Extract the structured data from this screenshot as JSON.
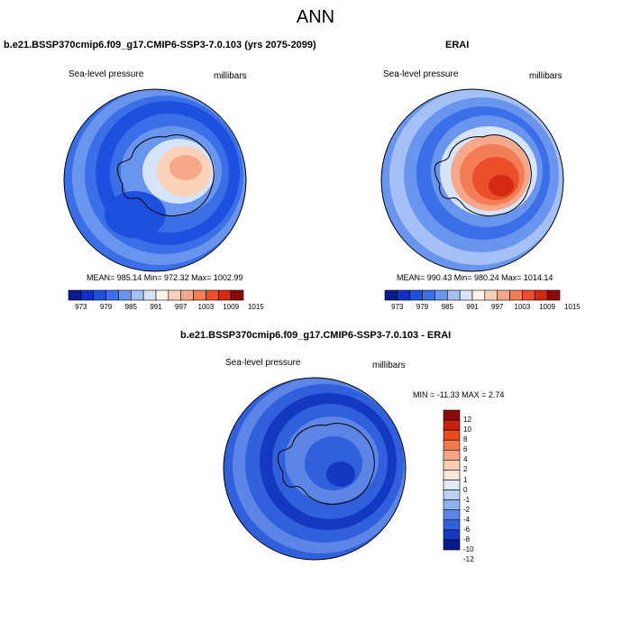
{
  "page": {
    "title": "ANN"
  },
  "panels": [
    {
      "id": "model",
      "title": "b.e21.BSSP370cmip6.f09_g17.CMIP6-SSP3-7.0.103 (yrs 2075-2099)",
      "left_label": "Sea-level pressure",
      "right_label": "millibars",
      "stats": "MEAN= 985.14  Min= 972.32  Max= 1002.99"
    },
    {
      "id": "obs",
      "title": "ERAI",
      "left_label": "Sea-level pressure",
      "right_label": "millibars",
      "stats": "MEAN= 990.43  Min= 980.24  Max= 1014.14"
    },
    {
      "id": "diff",
      "title": "b.e21.BSSP370cmip6.f09_g17.CMIP6-SSP3-7.0.103 - ERAI",
      "left_label": "Sea-level pressure",
      "right_label": "millibars",
      "stats": "MIN = -11.33 MAX =   2.74"
    }
  ],
  "abs_colorbar": {
    "colors": [
      "#0a1a8c",
      "#1230c8",
      "#1e50e0",
      "#3a6fe8",
      "#6a95ee",
      "#a4c0f4",
      "#d6e4fa",
      "#fff2e6",
      "#fbd2b8",
      "#f7a88a",
      "#f27d56",
      "#ea4f2a",
      "#d42a14",
      "#8a0a0a"
    ],
    "tick_labels": [
      "973",
      "979",
      "985",
      "991",
      "997",
      "1003",
      "1009",
      "1015"
    ]
  },
  "diff_colorbar": {
    "colors": [
      "#8a0a0a",
      "#c8200f",
      "#e84a1e",
      "#f07a4e",
      "#f5a584",
      "#f9cdb4",
      "#fde8da",
      "#e4ecfb",
      "#bcd0f5",
      "#8fb0ef",
      "#5c85e6",
      "#3060dc",
      "#1538c0",
      "#0a1a8c"
    ],
    "tick_labels": [
      "12",
      "10",
      "8",
      "6",
      "4",
      "2",
      "1",
      "0",
      "-1",
      "-2",
      "-4",
      "-6",
      "-8",
      "-10",
      "-12"
    ]
  }
}
